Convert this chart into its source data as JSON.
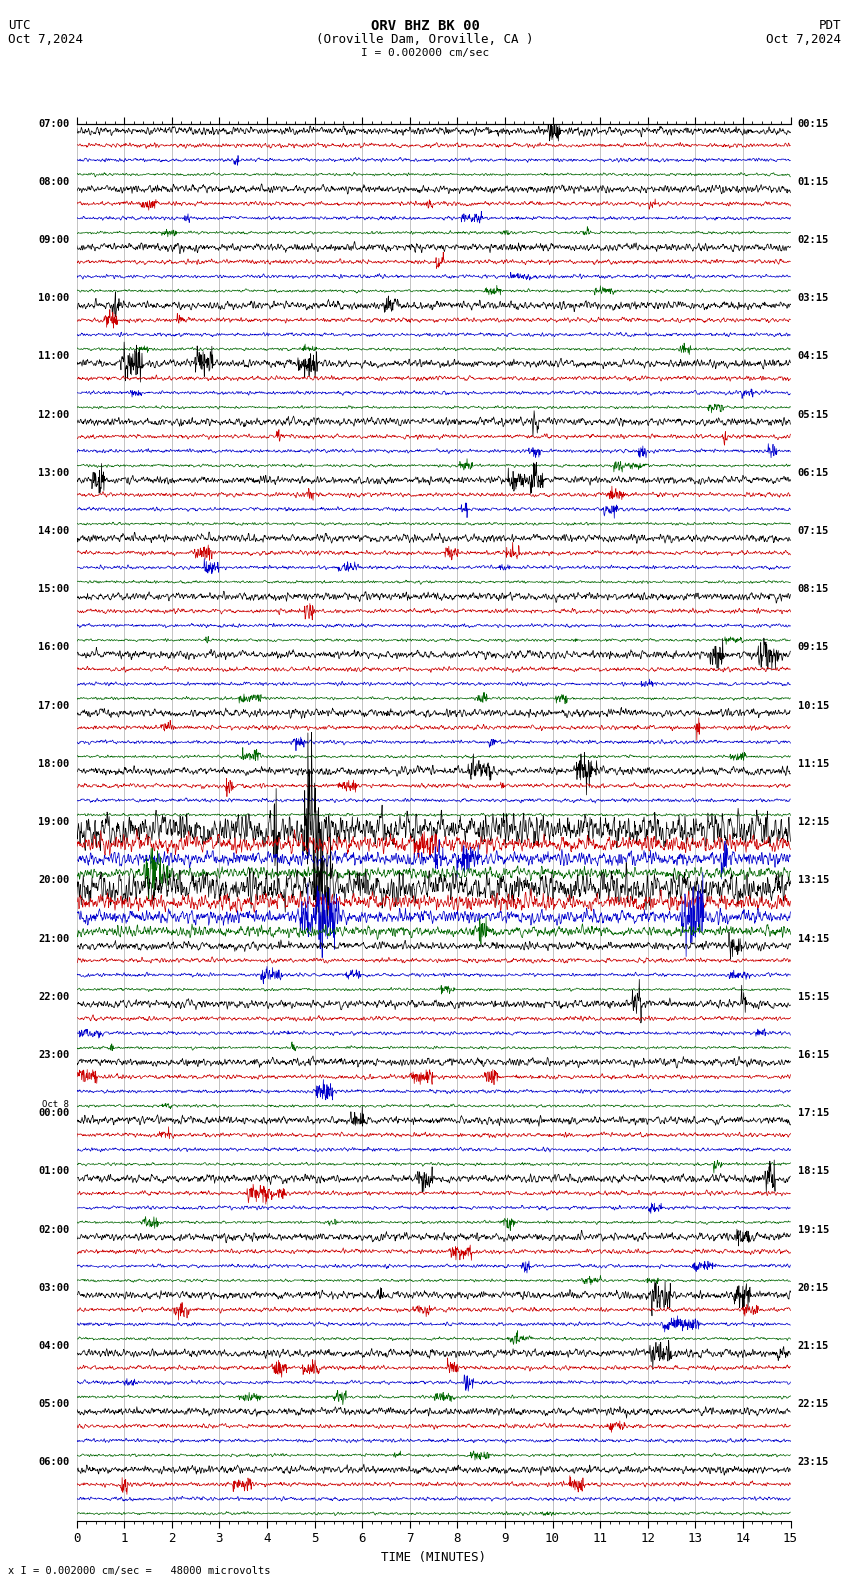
{
  "title_line1": "ORV BHZ BK 00",
  "title_line2": "(Oroville Dam, Oroville, CA )",
  "scale_label": "I = 0.002000 cm/sec",
  "left_header": "UTC",
  "left_date": "Oct 7,2024",
  "right_header": "PDT",
  "right_date": "Oct 7,2024",
  "xlabel": "TIME (MINUTES)",
  "bottom_note": "x I = 0.002000 cm/sec =   48000 microvolts",
  "xmin": 0,
  "xmax": 15,
  "bg_color": "#ffffff",
  "trace_colors": [
    "#000000",
    "#cc0000",
    "#0000cc",
    "#006600"
  ],
  "grid_color": "#888888",
  "left_label_times": [
    "07:00",
    "",
    "",
    "",
    "08:00",
    "",
    "",
    "",
    "09:00",
    "",
    "",
    "",
    "10:00",
    "",
    "",
    "",
    "11:00",
    "",
    "",
    "",
    "12:00",
    "",
    "",
    "",
    "13:00",
    "",
    "",
    "",
    "14:00",
    "",
    "",
    "",
    "15:00",
    "",
    "",
    "",
    "16:00",
    "",
    "",
    "",
    "17:00",
    "",
    "",
    "",
    "18:00",
    "",
    "",
    "",
    "19:00",
    "",
    "",
    "",
    "20:00",
    "",
    "",
    "",
    "21:00",
    "",
    "",
    "",
    "22:00",
    "",
    "",
    "",
    "23:00",
    "",
    "",
    "",
    "",
    "",
    "",
    "",
    "01:00",
    "",
    "",
    "",
    "02:00",
    "",
    "",
    "",
    "03:00",
    "",
    "",
    "",
    "04:00",
    "",
    "",
    "",
    "05:00",
    "",
    "",
    "",
    "06:00",
    "",
    "",
    ""
  ],
  "oct8_row": 96,
  "right_label_times": [
    "00:15",
    "",
    "",
    "",
    "01:15",
    "",
    "",
    "",
    "02:15",
    "",
    "",
    "",
    "03:15",
    "",
    "",
    "",
    "04:15",
    "",
    "",
    "",
    "05:15",
    "",
    "",
    "",
    "06:15",
    "",
    "",
    "",
    "07:15",
    "",
    "",
    "",
    "08:15",
    "",
    "",
    "",
    "09:15",
    "",
    "",
    "",
    "10:15",
    "",
    "",
    "",
    "11:15",
    "",
    "",
    "",
    "12:15",
    "",
    "",
    "",
    "13:15",
    "",
    "",
    "",
    "14:15",
    "",
    "",
    "",
    "15:15",
    "",
    "",
    "",
    "16:15",
    "",
    "",
    "",
    "17:15",
    "",
    "",
    "",
    "18:15",
    "",
    "",
    "",
    "19:15",
    "",
    "",
    "",
    "20:15",
    "",
    "",
    "",
    "21:15",
    "",
    "",
    "",
    "22:15",
    "",
    "",
    "",
    "23:15",
    "",
    "",
    ""
  ],
  "noise_base": 0.025,
  "noise_scales": [
    1.0,
    0.55,
    0.45,
    0.35
  ],
  "high_activity_rows": [
    48,
    49,
    50,
    51,
    52,
    53,
    54,
    55
  ],
  "high_noise_mult": 4.0
}
